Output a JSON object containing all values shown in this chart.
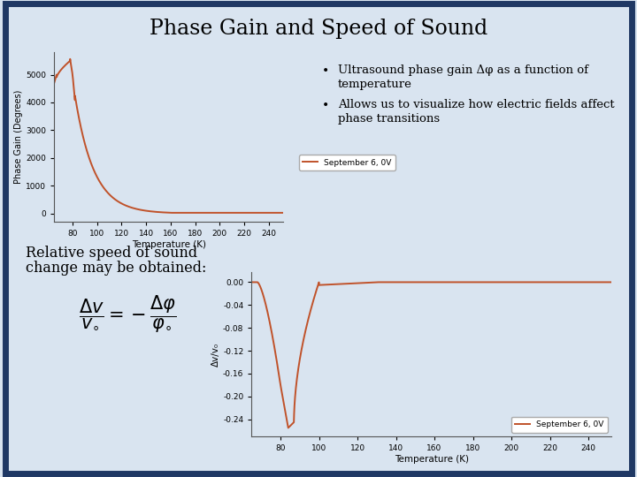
{
  "title": "Phase Gain and Speed of Sound",
  "background_color": "#d9e4f0",
  "border_color": "#1f3864",
  "plot_bg_color": "#d9e4f0",
  "line_color": "#c0522a",
  "legend_label": "September 6, 0V",
  "bullet1a": "Ultrasound phase gain Δφ as a function of",
  "bullet1b": "temperature",
  "bullet2a": "Allows us to visualize how electric fields affect",
  "bullet2b": "phase transitions",
  "bottom_text_line1": "Relative speed of sound",
  "bottom_text_line2": "change may be obtained:",
  "top_plot": {
    "xlabel": "Temperature (K)",
    "ylabel": "Phase Gain (Degrees)",
    "ylim": [
      -300,
      5800
    ],
    "yticks": [
      0,
      1000,
      2000,
      3000,
      4000,
      5000
    ],
    "xlim": [
      65,
      252
    ],
    "xticks": [
      80,
      100,
      120,
      140,
      160,
      180,
      200,
      220,
      240
    ]
  },
  "bottom_plot": {
    "xlabel": "Temperature (K)",
    "ylabel": "Δv/v₀",
    "ylim": [
      -0.27,
      0.018
    ],
    "yticks": [
      0.0,
      -0.04,
      -0.08,
      -0.12,
      -0.16,
      -0.2,
      -0.24
    ],
    "xlim": [
      65,
      252
    ],
    "xticks": [
      80,
      100,
      120,
      140,
      160,
      180,
      200,
      220,
      240
    ]
  }
}
